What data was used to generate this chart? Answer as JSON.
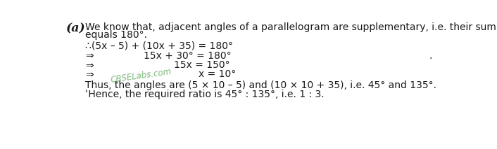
{
  "bg_color": "#ffffff",
  "label_a": "(a)",
  "line1": "We know that, adjacent angles of a parallelogram are supplementary, i.e. their sum",
  "line2": "equals 180°.",
  "line3a": "∴(5x – 5) + (10x + 35) = 180°",
  "arrow": "⇒",
  "line4": "15x + 30° = 180°",
  "line5": "15x = 150°",
  "line6": "x = 10°",
  "watermark": "CBSELabs.com",
  "line7": "Thus, the angles are (5 × 10 – 5) and (10 × 10 + 35), i.e. 45° and 135°.",
  "line8": "ʾHence, the required ratio is 45° : 135°, i.e. 1 : 3.",
  "dot": ".",
  "text_color": "#1a1a1a",
  "watermark_color": "#6db36d",
  "font_size_main": 10.0,
  "font_size_label": 12.5,
  "font_size_watermark": 8.5
}
